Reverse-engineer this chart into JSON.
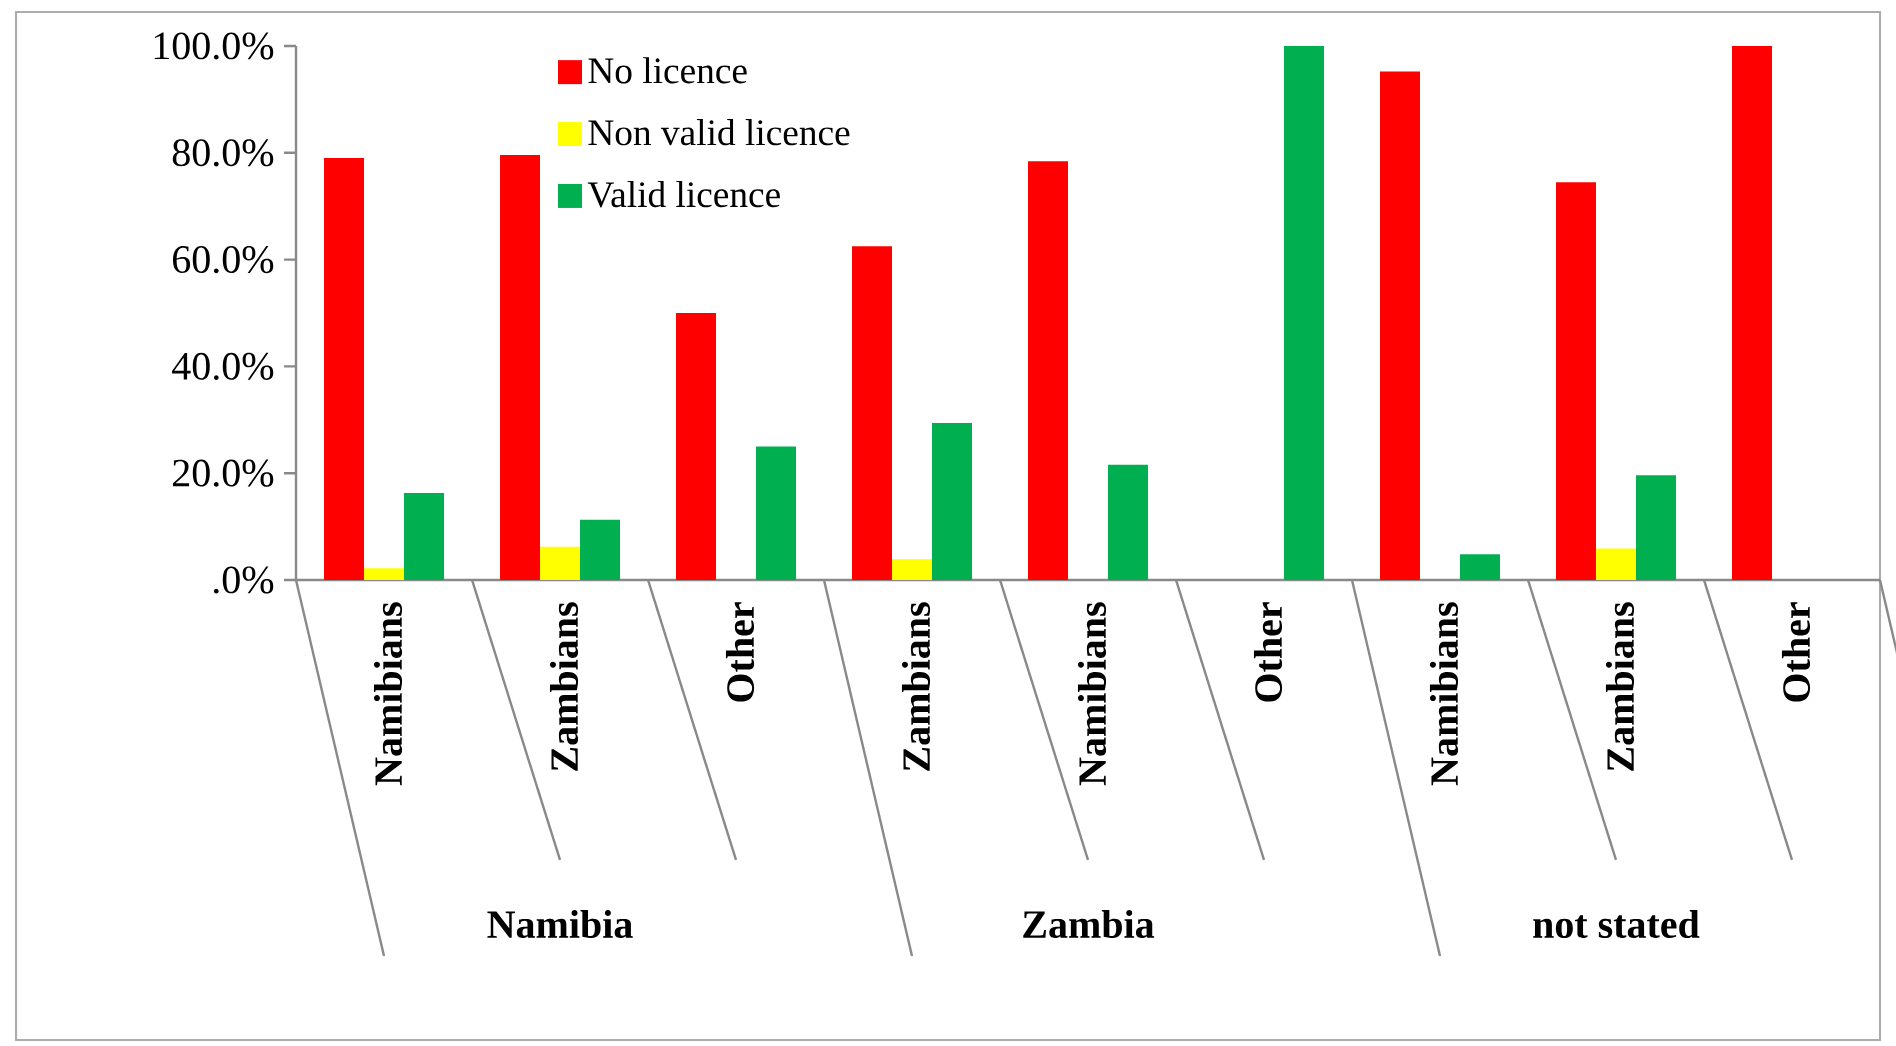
{
  "chart_data": {
    "type": "bar",
    "categories": [
      "Namibians",
      "Zambians",
      "Other",
      "Zambians",
      "Namibians",
      "Other",
      "Namibians",
      "Zambians",
      "Other"
    ],
    "series": [
      {
        "name": "No licence",
        "color": "#ff0000",
        "values": [
          79.0,
          79.6,
          50.0,
          62.5,
          78.4,
          0,
          95.2,
          74.5,
          100
        ]
      },
      {
        "name": "Non valid licence",
        "color": "#ffff00",
        "values": [
          2.2,
          6.2,
          0,
          3.9,
          0,
          0,
          0,
          5.9,
          0
        ]
      },
      {
        "name": "Valid licence",
        "color": "#00b050",
        "values": [
          16.3,
          11.3,
          25.0,
          29.4,
          21.6,
          100,
          4.8,
          19.6,
          0
        ]
      }
    ],
    "ylim": [
      0,
      100
    ],
    "yticks": [
      {
        "value": 0,
        "label": ".0%"
      },
      {
        "value": 20,
        "label": "20.0%"
      },
      {
        "value": 40,
        "label": "40.0%"
      },
      {
        "value": 60,
        "label": "60.0%"
      },
      {
        "value": 80,
        "label": "80.0%"
      },
      {
        "value": 100,
        "label": "100.0%"
      }
    ],
    "legend": "top",
    "annotations": [
      "Namibia",
      "Zambia",
      "not stated"
    ]
  }
}
